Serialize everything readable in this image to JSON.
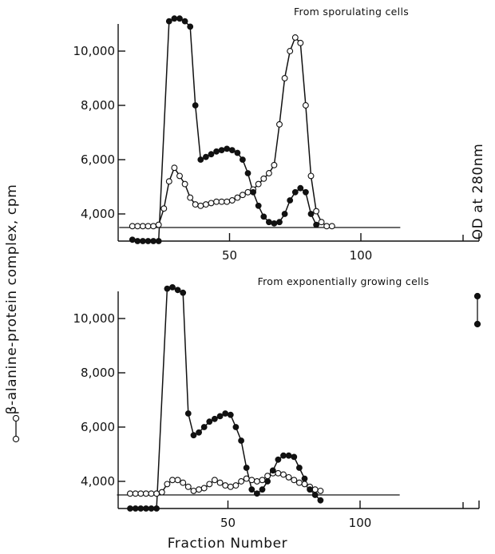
{
  "chart_data": {
    "type": "line",
    "x_axis_label": "Fraction Number",
    "left_axis_label": "β-alanine-protein complex, cpm",
    "right_axis_label": "OD at 280nm",
    "marker_styles": {
      "open": "open-circle",
      "filled": "filled-circle"
    },
    "colors": {
      "ink": "#111111",
      "background": "#ffffff"
    },
    "panels": [
      {
        "title": "From sporulating cells",
        "x_ticks": [
          50,
          100
        ],
        "y_ticks": [
          4000,
          6000,
          8000,
          10000
        ],
        "y_tick_labels": [
          "4,000",
          "6,000",
          "8,000",
          "10,000"
        ],
        "x_range": [
          0,
          118
        ],
        "y_range": [
          3000,
          11500
        ],
        "baseline_y": 3500,
        "series": [
          {
            "marker": "open",
            "points": [
              [
                13,
                3550
              ],
              [
                15,
                3550
              ],
              [
                17,
                3550
              ],
              [
                19,
                3550
              ],
              [
                21,
                3550
              ],
              [
                23,
                3600
              ],
              [
                25,
                4200
              ],
              [
                27,
                5200
              ],
              [
                29,
                5700
              ],
              [
                31,
                5400
              ],
              [
                33,
                5100
              ],
              [
                35,
                4600
              ],
              [
                37,
                4350
              ],
              [
                39,
                4300
              ],
              [
                41,
                4350
              ],
              [
                43,
                4400
              ],
              [
                45,
                4450
              ],
              [
                47,
                4450
              ],
              [
                49,
                4450
              ],
              [
                51,
                4500
              ],
              [
                53,
                4600
              ],
              [
                55,
                4700
              ],
              [
                57,
                4800
              ],
              [
                59,
                4900
              ],
              [
                61,
                5100
              ],
              [
                63,
                5300
              ],
              [
                65,
                5500
              ],
              [
                67,
                5800
              ],
              [
                69,
                7300
              ],
              [
                71,
                9000
              ],
              [
                73,
                10000
              ],
              [
                75,
                10500
              ],
              [
                77,
                10300
              ],
              [
                79,
                8000
              ],
              [
                81,
                5400
              ],
              [
                83,
                4100
              ],
              [
                85,
                3700
              ],
              [
                87,
                3550
              ],
              [
                89,
                3550
              ]
            ]
          },
          {
            "marker": "filled",
            "points": [
              [
                13,
                3050
              ],
              [
                15,
                3000
              ],
              [
                17,
                3000
              ],
              [
                19,
                3000
              ],
              [
                21,
                3000
              ],
              [
                23,
                3000
              ],
              [
                27,
                11100
              ],
              [
                29,
                11200
              ],
              [
                31,
                11200
              ],
              [
                33,
                11100
              ],
              [
                35,
                10900
              ],
              [
                37,
                8000
              ],
              [
                39,
                6000
              ],
              [
                41,
                6100
              ],
              [
                43,
                6200
              ],
              [
                45,
                6300
              ],
              [
                47,
                6350
              ],
              [
                49,
                6400
              ],
              [
                51,
                6350
              ],
              [
                53,
                6250
              ],
              [
                55,
                6000
              ],
              [
                57,
                5500
              ],
              [
                59,
                4800
              ],
              [
                61,
                4300
              ],
              [
                63,
                3900
              ],
              [
                65,
                3700
              ],
              [
                67,
                3650
              ],
              [
                69,
                3700
              ],
              [
                71,
                4000
              ],
              [
                73,
                4500
              ],
              [
                75,
                4800
              ],
              [
                77,
                4950
              ],
              [
                79,
                4800
              ],
              [
                81,
                4000
              ],
              [
                83,
                3600
              ]
            ]
          }
        ]
      },
      {
        "title": "From exponentially growing cells",
        "x_ticks": [
          50,
          100
        ],
        "y_ticks": [
          4000,
          6000,
          8000,
          10000
        ],
        "y_tick_labels": [
          "4,000",
          "6,000",
          "8,000",
          "10,000"
        ],
        "x_range": [
          0,
          118
        ],
        "y_range": [
          3000,
          11500
        ],
        "baseline_y": 3500,
        "series": [
          {
            "marker": "open",
            "points": [
              [
                13,
                3550
              ],
              [
                15,
                3550
              ],
              [
                17,
                3550
              ],
              [
                19,
                3550
              ],
              [
                21,
                3550
              ],
              [
                23,
                3550
              ],
              [
                25,
                3600
              ],
              [
                27,
                3900
              ],
              [
                29,
                4050
              ],
              [
                31,
                4050
              ],
              [
                33,
                3950
              ],
              [
                35,
                3800
              ],
              [
                37,
                3650
              ],
              [
                39,
                3700
              ],
              [
                41,
                3750
              ],
              [
                43,
                3900
              ],
              [
                45,
                4050
              ],
              [
                47,
                3950
              ],
              [
                49,
                3850
              ],
              [
                51,
                3800
              ],
              [
                53,
                3850
              ],
              [
                55,
                4000
              ],
              [
                57,
                4100
              ],
              [
                59,
                4050
              ],
              [
                61,
                4000
              ],
              [
                63,
                4050
              ],
              [
                65,
                4200
              ],
              [
                67,
                4300
              ],
              [
                69,
                4300
              ],
              [
                71,
                4250
              ],
              [
                73,
                4150
              ],
              [
                75,
                4050
              ],
              [
                77,
                3950
              ],
              [
                79,
                3900
              ],
              [
                81,
                3800
              ],
              [
                83,
                3700
              ],
              [
                85,
                3650
              ]
            ]
          },
          {
            "marker": "filled",
            "points": [
              [
                13,
                3000
              ],
              [
                15,
                3000
              ],
              [
                17,
                3000
              ],
              [
                19,
                3000
              ],
              [
                21,
                3000
              ],
              [
                23,
                3000
              ],
              [
                27,
                11100
              ],
              [
                29,
                11150
              ],
              [
                31,
                11050
              ],
              [
                33,
                10950
              ],
              [
                35,
                6500
              ],
              [
                37,
                5700
              ],
              [
                39,
                5800
              ],
              [
                41,
                6000
              ],
              [
                43,
                6200
              ],
              [
                45,
                6300
              ],
              [
                47,
                6400
              ],
              [
                49,
                6500
              ],
              [
                51,
                6450
              ],
              [
                53,
                6000
              ],
              [
                55,
                5500
              ],
              [
                57,
                4500
              ],
              [
                59,
                3700
              ],
              [
                61,
                3550
              ],
              [
                63,
                3700
              ],
              [
                65,
                4000
              ],
              [
                67,
                4400
              ],
              [
                69,
                4800
              ],
              [
                71,
                4950
              ],
              [
                73,
                4950
              ],
              [
                75,
                4900
              ],
              [
                77,
                4500
              ],
              [
                79,
                4100
              ],
              [
                81,
                3700
              ],
              [
                83,
                3500
              ],
              [
                85,
                3300
              ]
            ]
          }
        ]
      }
    ]
  }
}
